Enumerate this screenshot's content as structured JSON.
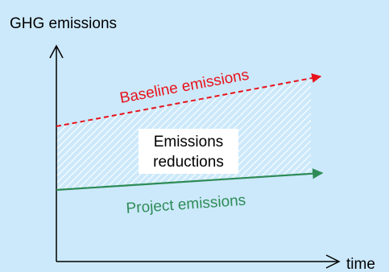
{
  "y_axis_label": "GHG emissions",
  "x_axis_label": "time",
  "baseline_label": "Baseline emissions",
  "project_label": "Project emissions",
  "reductions_label_line1": "Emissions",
  "reductions_label_line2": "reductions",
  "colors": {
    "background": "#cce9fb",
    "baseline": "#e8121b",
    "project": "#2e8b57",
    "axis": "#000000",
    "hatch": "#ffffff"
  }
}
